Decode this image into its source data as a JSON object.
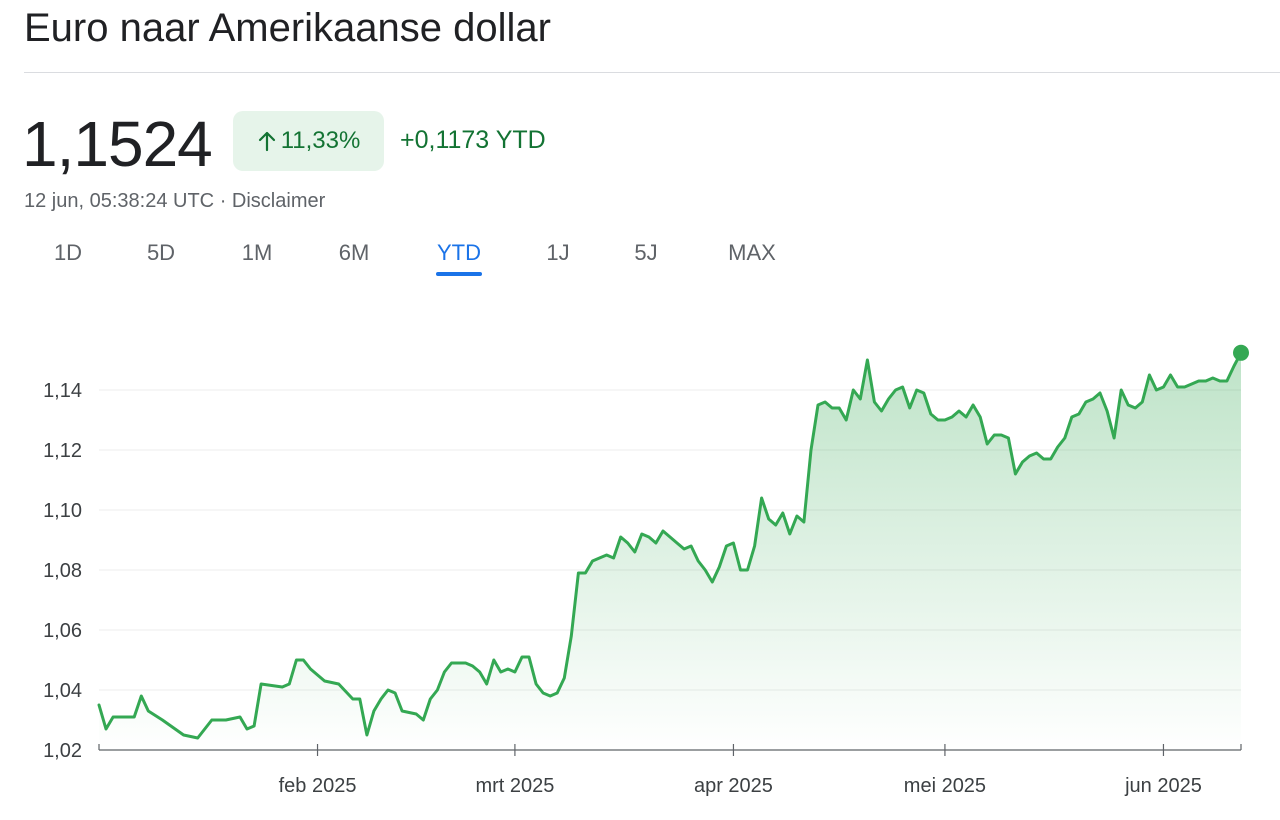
{
  "header": {
    "title": "Euro naar Amerikaanse dollar",
    "price": "1,1524",
    "change_percent": "11,33%",
    "change_value": "+0,1173 YTD",
    "timestamp": "12 jun, 05:38:24 UTC",
    "separator": "·",
    "disclaimer": "Disclaimer"
  },
  "tabs": [
    {
      "label": "1D"
    },
    {
      "label": "5D"
    },
    {
      "label": "1M"
    },
    {
      "label": "6M"
    },
    {
      "label": "YTD",
      "active": true
    },
    {
      "label": "1J"
    },
    {
      "label": "5J"
    },
    {
      "label": "MAX"
    }
  ],
  "colors": {
    "positive": "#137333",
    "line": "#34a853",
    "badge_bg": "#e6f4ea",
    "accent": "#1a73e8"
  },
  "icons": {
    "change_arrow": "arrow-up-icon"
  },
  "chart_data": {
    "type": "area",
    "title": "",
    "xlabel": "",
    "ylabel": "",
    "ylim": [
      1.02,
      1.155
    ],
    "yticks": [
      1.02,
      1.04,
      1.06,
      1.08,
      1.1,
      1.12,
      1.14
    ],
    "ytick_labels": [
      "1,02",
      "1,04",
      "1,06",
      "1,08",
      "1,10",
      "1,12",
      "1,14"
    ],
    "xticks": [
      {
        "date": "2025-02-01",
        "label": "feb 2025"
      },
      {
        "date": "2025-03-01",
        "label": "mrt 2025"
      },
      {
        "date": "2025-04-01",
        "label": "apr 2025"
      },
      {
        "date": "2025-05-01",
        "label": "mei 2025"
      },
      {
        "date": "2025-06-01",
        "label": "jun 2025"
      }
    ],
    "xlim": [
      "2025-01-01",
      "2025-06-12"
    ],
    "grid": true,
    "series": [
      {
        "values": [
          [
            "2025-01-01",
            1.035
          ],
          [
            "2025-01-02",
            1.027
          ],
          [
            "2025-01-03",
            1.031
          ],
          [
            "2025-01-06",
            1.031
          ],
          [
            "2025-01-07",
            1.038
          ],
          [
            "2025-01-08",
            1.033
          ],
          [
            "2025-01-10",
            1.03
          ],
          [
            "2025-01-13",
            1.025
          ],
          [
            "2025-01-15",
            1.024
          ],
          [
            "2025-01-17",
            1.03
          ],
          [
            "2025-01-19",
            1.03
          ],
          [
            "2025-01-21",
            1.031
          ],
          [
            "2025-01-22",
            1.027
          ],
          [
            "2025-01-23",
            1.028
          ],
          [
            "2025-01-24",
            1.042
          ],
          [
            "2025-01-27",
            1.041
          ],
          [
            "2025-01-28",
            1.042
          ],
          [
            "2025-01-29",
            1.05
          ],
          [
            "2025-01-30",
            1.05
          ],
          [
            "2025-01-31",
            1.047
          ],
          [
            "2025-02-02",
            1.043
          ],
          [
            "2025-02-04",
            1.042
          ],
          [
            "2025-02-06",
            1.037
          ],
          [
            "2025-02-07",
            1.037
          ],
          [
            "2025-02-08",
            1.025
          ],
          [
            "2025-02-09",
            1.033
          ],
          [
            "2025-02-10",
            1.037
          ],
          [
            "2025-02-11",
            1.04
          ],
          [
            "2025-02-12",
            1.039
          ],
          [
            "2025-02-13",
            1.033
          ],
          [
            "2025-02-15",
            1.032
          ],
          [
            "2025-02-16",
            1.03
          ],
          [
            "2025-02-17",
            1.037
          ],
          [
            "2025-02-18",
            1.04
          ],
          [
            "2025-02-19",
            1.046
          ],
          [
            "2025-02-20",
            1.049
          ],
          [
            "2025-02-22",
            1.049
          ],
          [
            "2025-02-23",
            1.048
          ],
          [
            "2025-02-24",
            1.046
          ],
          [
            "2025-02-25",
            1.042
          ],
          [
            "2025-02-26",
            1.05
          ],
          [
            "2025-02-27",
            1.046
          ],
          [
            "2025-02-28",
            1.047
          ],
          [
            "2025-03-01",
            1.046
          ],
          [
            "2025-03-02",
            1.051
          ],
          [
            "2025-03-03",
            1.051
          ],
          [
            "2025-03-04",
            1.042
          ],
          [
            "2025-03-05",
            1.039
          ],
          [
            "2025-03-06",
            1.038
          ],
          [
            "2025-03-07",
            1.039
          ],
          [
            "2025-03-08",
            1.044
          ],
          [
            "2025-03-09",
            1.058
          ],
          [
            "2025-03-10",
            1.079
          ],
          [
            "2025-03-11",
            1.079
          ],
          [
            "2025-03-12",
            1.083
          ],
          [
            "2025-03-13",
            1.084
          ],
          [
            "2025-03-14",
            1.085
          ],
          [
            "2025-03-15",
            1.084
          ],
          [
            "2025-03-16",
            1.091
          ],
          [
            "2025-03-17",
            1.089
          ],
          [
            "2025-03-18",
            1.086
          ],
          [
            "2025-03-19",
            1.092
          ],
          [
            "2025-03-20",
            1.091
          ],
          [
            "2025-03-21",
            1.089
          ],
          [
            "2025-03-22",
            1.093
          ],
          [
            "2025-03-24",
            1.089
          ],
          [
            "2025-03-25",
            1.087
          ],
          [
            "2025-03-26",
            1.088
          ],
          [
            "2025-03-27",
            1.083
          ],
          [
            "2025-03-28",
            1.08
          ],
          [
            "2025-03-29",
            1.076
          ],
          [
            "2025-03-30",
            1.081
          ],
          [
            "2025-03-31",
            1.088
          ],
          [
            "2025-04-01",
            1.089
          ],
          [
            "2025-04-02",
            1.08
          ],
          [
            "2025-04-03",
            1.08
          ],
          [
            "2025-04-04",
            1.088
          ],
          [
            "2025-04-05",
            1.104
          ],
          [
            "2025-04-06",
            1.097
          ],
          [
            "2025-04-07",
            1.095
          ],
          [
            "2025-04-08",
            1.099
          ],
          [
            "2025-04-09",
            1.092
          ],
          [
            "2025-04-10",
            1.098
          ],
          [
            "2025-04-11",
            1.096
          ],
          [
            "2025-04-12",
            1.12
          ],
          [
            "2025-04-13",
            1.135
          ],
          [
            "2025-04-14",
            1.136
          ],
          [
            "2025-04-15",
            1.134
          ],
          [
            "2025-04-16",
            1.134
          ],
          [
            "2025-04-17",
            1.13
          ],
          [
            "2025-04-18",
            1.14
          ],
          [
            "2025-04-19",
            1.137
          ],
          [
            "2025-04-20",
            1.15
          ],
          [
            "2025-04-21",
            1.136
          ],
          [
            "2025-04-22",
            1.133
          ],
          [
            "2025-04-23",
            1.137
          ],
          [
            "2025-04-24",
            1.14
          ],
          [
            "2025-04-25",
            1.141
          ],
          [
            "2025-04-26",
            1.134
          ],
          [
            "2025-04-27",
            1.14
          ],
          [
            "2025-04-28",
            1.139
          ],
          [
            "2025-04-29",
            1.132
          ],
          [
            "2025-04-30",
            1.13
          ],
          [
            "2025-05-01",
            1.13
          ],
          [
            "2025-05-02",
            1.131
          ],
          [
            "2025-05-03",
            1.133
          ],
          [
            "2025-05-04",
            1.131
          ],
          [
            "2025-05-05",
            1.135
          ],
          [
            "2025-05-06",
            1.131
          ],
          [
            "2025-05-07",
            1.122
          ],
          [
            "2025-05-08",
            1.125
          ],
          [
            "2025-05-09",
            1.125
          ],
          [
            "2025-05-10",
            1.124
          ],
          [
            "2025-05-11",
            1.112
          ],
          [
            "2025-05-12",
            1.116
          ],
          [
            "2025-05-13",
            1.118
          ],
          [
            "2025-05-14",
            1.119
          ],
          [
            "2025-05-15",
            1.117
          ],
          [
            "2025-05-16",
            1.117
          ],
          [
            "2025-05-17",
            1.121
          ],
          [
            "2025-05-18",
            1.124
          ],
          [
            "2025-05-19",
            1.131
          ],
          [
            "2025-05-20",
            1.132
          ],
          [
            "2025-05-21",
            1.136
          ],
          [
            "2025-05-22",
            1.137
          ],
          [
            "2025-05-23",
            1.139
          ],
          [
            "2025-05-24",
            1.133
          ],
          [
            "2025-05-25",
            1.124
          ],
          [
            "2025-05-26",
            1.14
          ],
          [
            "2025-05-27",
            1.135
          ],
          [
            "2025-05-28",
            1.134
          ],
          [
            "2025-05-29",
            1.136
          ],
          [
            "2025-05-30",
            1.145
          ],
          [
            "2025-05-31",
            1.14
          ],
          [
            "2025-06-01",
            1.141
          ],
          [
            "2025-06-02",
            1.145
          ],
          [
            "2025-06-03",
            1.141
          ],
          [
            "2025-06-04",
            1.141
          ],
          [
            "2025-06-05",
            1.142
          ],
          [
            "2025-06-06",
            1.143
          ],
          [
            "2025-06-07",
            1.143
          ],
          [
            "2025-06-08",
            1.144
          ],
          [
            "2025-06-09",
            1.143
          ],
          [
            "2025-06-10",
            1.143
          ],
          [
            "2025-06-11",
            1.148
          ],
          [
            "2025-06-12",
            1.1524
          ]
        ]
      }
    ]
  }
}
